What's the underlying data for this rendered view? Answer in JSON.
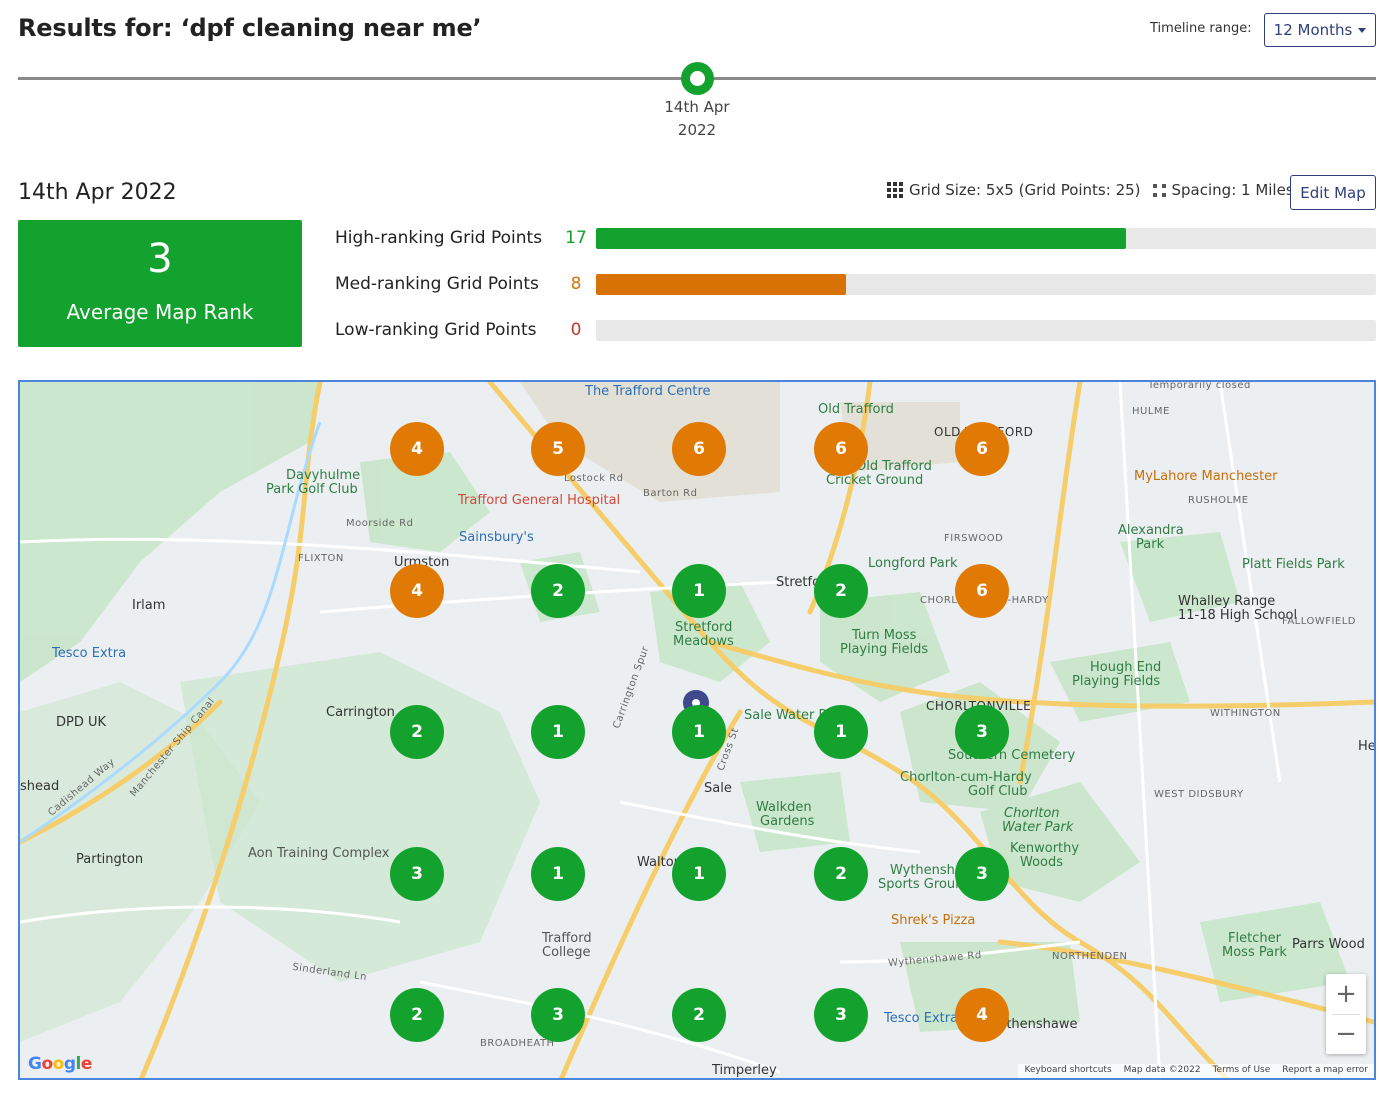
{
  "header": {
    "title": "Results for: ‘dpf cleaning near me’",
    "timeline_range_label": "Timeline range:",
    "timeline_range_value": "12 Months"
  },
  "timeline": {
    "node_date_line1": "14th Apr",
    "node_date_line2": "2022",
    "node_color": "#14a22f"
  },
  "summary": {
    "date": "14th Apr 2022",
    "grid_size": "Grid Size: 5x5 (Grid Points: 25)",
    "spacing": "Spacing: 1 Miles",
    "edit_map_label": "Edit Map",
    "average_rank": "3",
    "average_rank_label": "Average Map Rank"
  },
  "stats": [
    {
      "label": "High-ranking Grid Points",
      "count": "17",
      "total": 25,
      "color": "#14a22f",
      "count_color": "#14a22f"
    },
    {
      "label": "Med-ranking Grid Points",
      "count": "8",
      "total": 25,
      "color": "#d97204",
      "count_color": "#d97204"
    },
    {
      "label": "Low-ranking Grid Points",
      "count": "0",
      "total": 25,
      "color": "#d0453a",
      "count_color": "#c0392b"
    }
  ],
  "grid": [
    [
      "4",
      "5",
      "6",
      "6",
      "6"
    ],
    [
      "4",
      "2",
      "1",
      "2",
      "6"
    ],
    [
      "2",
      "1",
      "1",
      "1",
      "3"
    ],
    [
      "3",
      "1",
      "1",
      "2",
      "3"
    ],
    [
      "2",
      "3",
      "2",
      "3",
      "4"
    ]
  ],
  "map": {
    "labels": {
      "trafford_centre": "The Trafford Centre",
      "old_trafford": "Old Trafford",
      "old_trafford_area": "OLD TRAFFORD",
      "hulme": "HULME",
      "davyhulme1": "Davyhulme",
      "davyhulme2": "Park Golf Club",
      "trafford_general": "Trafford General Hospital",
      "lostock": "Lostock Rd",
      "barton": "Barton Rd",
      "cricket1": "Old Trafford",
      "cricket2": "Cricket Ground",
      "mylahore": "MyLahore Manchester",
      "rusholme": "RUSHOLME",
      "moorside": "Moorside Rd",
      "sainsburys": "Sainsbury's",
      "alexandra1": "Alexandra",
      "alexandra2": "Park",
      "flixton": "FLIXTON",
      "urmston": "Urmston",
      "firswood": "FIRSWOOD",
      "longford": "Longford Park",
      "platt_fields": "Platt Fields Park",
      "irlam": "Irlam",
      "stretford": "Stretford",
      "whalley1": "Whalley Range",
      "whalley2": "11-18 High School",
      "fallowfield": "FALLOWFIELD",
      "stretford_meadows1": "Stretford",
      "stretford_meadows2": "Meadows",
      "turn_moss1": "Turn Moss",
      "turn_moss2": "Playing Fields",
      "tesco_extra_w": "Tesco Extra",
      "hough_end1": "Hough End",
      "hough_end2": "Playing Fields",
      "dpd": "DPD UK",
      "carrington": "Carrington",
      "sale_water": "Sale Water Park",
      "chorltonville": "CHORLTONVILLE",
      "withington": "WITHINGTON",
      "southern_cemetery": "Southern Cemetery",
      "chorlton_golf1": "Chorlton-cum-Hardy",
      "chorlton_golf2": "Golf Club",
      "sale": "Sale",
      "shead": "shead",
      "west_didsbury": "WEST DIDSBURY",
      "walkden1": "Walkden",
      "walkden2": "Gardens",
      "chorlton_wp1": "Chorlton",
      "chorlton_wp2": "Water Park",
      "partington": "Partington",
      "aon": "Aon Training Complex",
      "kenworthy1": "Kenworthy",
      "kenworthy2": "Woods",
      "walton": "Walton",
      "wythenshawe_sports1": "Wythenshawe",
      "wythenshawe_sports2": "Sports Ground",
      "shreks": "Shrek's Pizza",
      "trafford_college1": "Trafford",
      "trafford_college2": "College",
      "fletcher1": "Fletcher",
      "fletcher2": "Moss Park",
      "parrs_wood": "Parrs Wood",
      "northenden": "NORTHENDEN",
      "tesco_extra_s": "Tesco Extra",
      "wythenshawe": "Wythenshawe",
      "broadheath": "BROADHEATH",
      "timperley": "Timperley",
      "chorlton_hardy": "CHORLTON-CUM-HARDY",
      "temporarily_closed": "Temporarily closed",
      "sinderland": "Sinderland Ln",
      "cadishead_way": "Cadishead Way",
      "ship_canal": "Manchester Ship Canal",
      "cross_st": "Cross St",
      "wythenshawe_rd": "Wythenshawe Rd",
      "carrington_spur": "Carrington Spur",
      "he": "He"
    },
    "attribution": [
      "Keyboard shortcuts",
      "Map data ©2022",
      "Terms of Use",
      "Report a map error"
    ],
    "zoom_in": "+",
    "zoom_out": "−",
    "google": [
      "G",
      "o",
      "o",
      "g",
      "l",
      "e"
    ]
  },
  "colors": {
    "high": "#14a22f",
    "medium": "#e07a05",
    "accent": "#2e3f7a"
  }
}
